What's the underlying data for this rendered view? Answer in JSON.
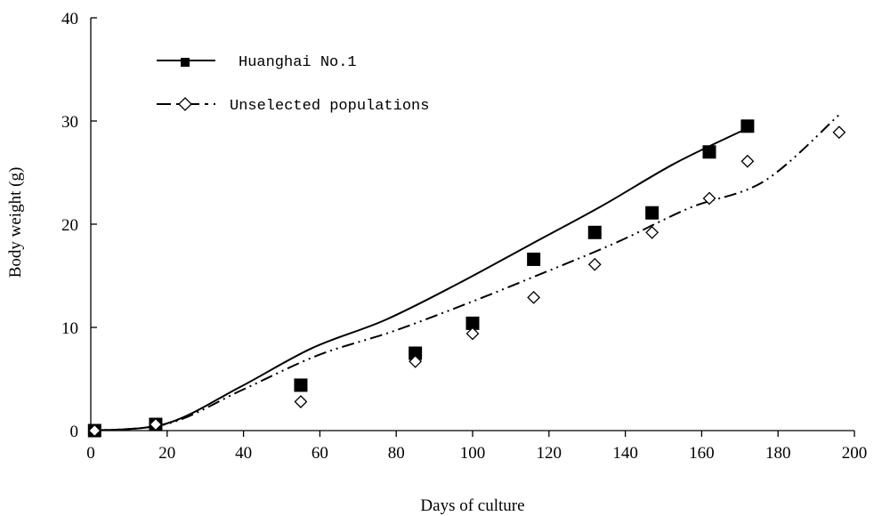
{
  "chart_data": {
    "type": "scatter",
    "xlabel": "Days of culture",
    "ylabel": "Body weight (g)",
    "xlim": [
      0,
      200
    ],
    "ylim": [
      0,
      40
    ],
    "x_ticks": [
      "0",
      "20",
      "40",
      "60",
      "80",
      "100",
      "120",
      "140",
      "160",
      "180",
      "200"
    ],
    "y_ticks": [
      "0",
      "10",
      "20",
      "30",
      "40"
    ],
    "grid": false,
    "legend_position": "top-left",
    "series": [
      {
        "name": "Huanghai No.1",
        "marker": "filled-square",
        "line_style": "solid",
        "x": [
          1,
          17,
          55,
          85,
          100,
          116,
          132,
          147,
          162,
          172
        ],
        "y": [
          0.0,
          0.6,
          4.4,
          7.5,
          10.4,
          16.6,
          19.2,
          21.1,
          27.0,
          29.5
        ],
        "trend_x_range": [
          1,
          172
        ],
        "trend_y": [
          0.0,
          0.7,
          4.2,
          8.0,
          10.7,
          14.2,
          18.0,
          21.8,
          25.9,
          29.3
        ]
      },
      {
        "name": "Unselected populations",
        "marker": "open-diamond",
        "line_style": "dash-dot-dot",
        "x": [
          1,
          17,
          55,
          85,
          100,
          116,
          132,
          147,
          162,
          172,
          196
        ],
        "y": [
          0.0,
          0.6,
          2.8,
          6.7,
          9.4,
          12.9,
          16.1,
          19.2,
          22.5,
          26.1,
          28.9
        ],
        "trend_x_range": [
          1,
          196
        ],
        "trend_y": [
          0.0,
          0.7,
          4.0,
          7.3,
          9.6,
          12.3,
          15.2,
          18.2,
          21.6,
          24.2,
          30.6
        ]
      }
    ]
  }
}
